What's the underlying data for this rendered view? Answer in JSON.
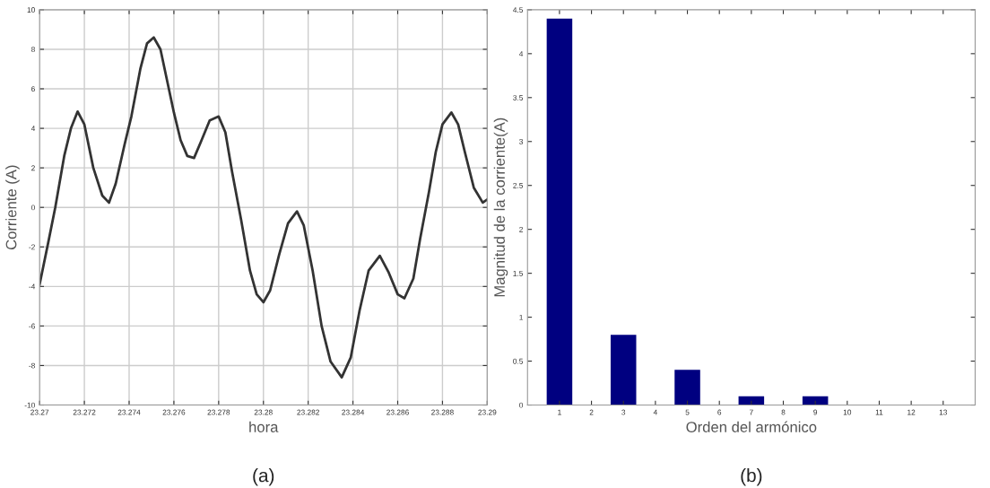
{
  "chart_data": [
    {
      "type": "line",
      "xlabel": "hora",
      "ylabel": "Corriente (A)",
      "annotations": [
        "(a)"
      ],
      "x": [
        23.27,
        23.2704,
        23.2707,
        23.2711,
        23.2714,
        23.2717,
        23.272,
        23.2724,
        23.2728,
        23.2731,
        23.2734,
        23.2738,
        23.2741,
        23.2745,
        23.2748,
        23.2751,
        23.2754,
        23.2757,
        23.276,
        23.2763,
        23.2766,
        23.2769,
        23.2772,
        23.2776,
        23.278,
        23.2783,
        23.2786,
        23.279,
        23.2794,
        23.2797,
        23.28,
        23.2803,
        23.2807,
        23.2811,
        23.2815,
        23.2818,
        23.2822,
        23.2826,
        23.283,
        23.2835,
        23.2839,
        23.2843,
        23.2847,
        23.2852,
        23.2856,
        23.286,
        23.2863,
        23.2867,
        23.287,
        23.2874,
        23.2877,
        23.288,
        23.2884,
        23.2887,
        23.289,
        23.2894,
        23.2898,
        23.29
      ],
      "series": [
        {
          "color": "#333333",
          "values": [
            -3.9,
            -1.7,
            0,
            2.6,
            4.0,
            4.85,
            4.2,
            2.0,
            0.6,
            0.24,
            1.2,
            3.2,
            4.6,
            7.0,
            8.3,
            8.6,
            8.0,
            6.4,
            4.8,
            3.4,
            2.6,
            2.5,
            3.3,
            4.4,
            4.6,
            3.8,
            1.8,
            -0.6,
            -3.2,
            -4.4,
            -4.8,
            -4.2,
            -2.4,
            -0.8,
            -0.2,
            -0.9,
            -3.2,
            -6.0,
            -7.8,
            -8.6,
            -7.6,
            -5.2,
            -3.2,
            -2.45,
            -3.3,
            -4.4,
            -4.6,
            -3.6,
            -1.6,
            0.8,
            2.8,
            4.2,
            4.8,
            4.2,
            2.8,
            1.0,
            0.24,
            0.4
          ]
        }
      ],
      "xlim": [
        23.27,
        23.29
      ],
      "xticks": [
        23.27,
        23.272,
        23.274,
        23.276,
        23.278,
        23.28,
        23.282,
        23.284,
        23.286,
        23.288,
        23.29
      ],
      "ylim": [
        -10,
        10
      ],
      "yticks": [
        -10,
        -8,
        -6,
        -4,
        -2,
        0,
        2,
        4,
        6,
        8,
        10
      ],
      "grid": true,
      "marker": "none",
      "line_style": "solid"
    },
    {
      "type": "bar",
      "xlabel": "Orden del armónico",
      "ylabel": "Magnitud de la corriente(A)",
      "annotations": [
        "(b)"
      ],
      "categories": [
        "1",
        "2",
        "3",
        "4",
        "5",
        "6",
        "7",
        "8",
        "9",
        "10",
        "11",
        "12",
        "13"
      ],
      "values": [
        4.4,
        0,
        0.8,
        0,
        0.4,
        0,
        0.1,
        0,
        0.1,
        0,
        0,
        0,
        0
      ],
      "color": "#000080",
      "ylim": [
        0,
        4.5
      ],
      "yticks": [
        0,
        0.5,
        1,
        1.5,
        2,
        2.5,
        3,
        3.5,
        4,
        4.5
      ],
      "grid": false
    }
  ]
}
